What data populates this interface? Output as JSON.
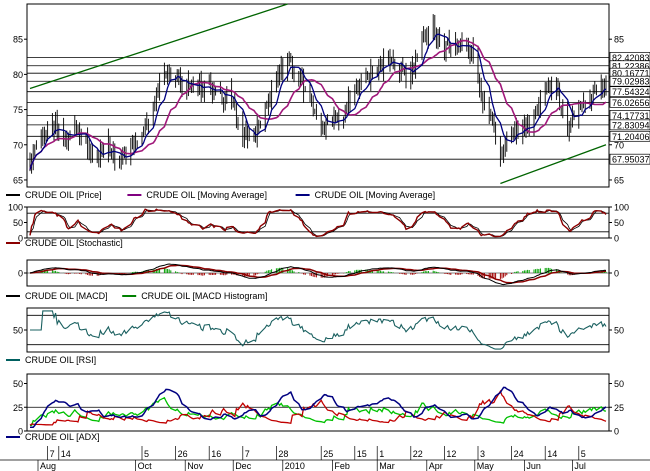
{
  "chart_data": [
    {
      "type": "candlestick",
      "panel": "price",
      "ylim": [
        64,
        90
      ],
      "y_ticks": [
        65,
        70,
        75,
        80,
        85
      ],
      "date_start": "2009-07-27",
      "date_end": "2010-07-22",
      "price_close_weekly": [
        [
          "2009-07-27",
          67.5
        ],
        [
          "2009-08-03",
          71.0
        ],
        [
          "2009-08-10",
          73.0
        ],
        [
          "2009-08-17",
          71.0
        ],
        [
          "2009-08-24",
          72.5
        ],
        [
          "2009-08-31",
          70.0
        ],
        [
          "2009-09-07",
          68.0
        ],
        [
          "2009-09-14",
          70.5
        ],
        [
          "2009-09-21",
          67.0
        ],
        [
          "2009-09-28",
          69.5
        ],
        [
          "2009-10-05",
          71.5
        ],
        [
          "2009-10-12",
          76.0
        ],
        [
          "2009-10-19",
          80.5
        ],
        [
          "2009-10-26",
          79.0
        ],
        [
          "2009-11-02",
          78.5
        ],
        [
          "2009-11-09",
          77.5
        ],
        [
          "2009-11-16",
          78.5
        ],
        [
          "2009-11-23",
          77.0
        ],
        [
          "2009-11-30",
          77.5
        ],
        [
          "2009-12-07",
          71.5
        ],
        [
          "2009-12-14",
          71.0
        ],
        [
          "2009-12-21",
          75.0
        ],
        [
          "2009-12-28",
          79.5
        ],
        [
          "2010-01-04",
          82.0
        ],
        [
          "2010-01-11",
          79.5
        ],
        [
          "2010-01-18",
          76.5
        ],
        [
          "2010-01-25",
          73.5
        ],
        [
          "2010-02-01",
          73.0
        ],
        [
          "2010-02-08",
          74.5
        ],
        [
          "2010-02-15",
          78.5
        ],
        [
          "2010-02-22",
          79.5
        ],
        [
          "2010-03-01",
          80.5
        ],
        [
          "2010-03-08",
          82.0
        ],
        [
          "2010-03-15",
          80.5
        ],
        [
          "2010-03-22",
          80.0
        ],
        [
          "2010-03-29",
          84.5
        ],
        [
          "2010-04-05",
          86.0
        ],
        [
          "2010-04-12",
          84.0
        ],
        [
          "2010-04-19",
          84.0
        ],
        [
          "2010-04-26",
          85.5
        ],
        [
          "2010-05-03",
          79.0
        ],
        [
          "2010-05-10",
          73.5
        ],
        [
          "2010-05-17",
          69.0
        ],
        [
          "2010-05-24",
          72.5
        ],
        [
          "2010-05-31",
          72.5
        ],
        [
          "2010-06-07",
          74.0
        ],
        [
          "2010-06-14",
          77.5
        ],
        [
          "2010-06-21",
          78.0
        ],
        [
          "2010-06-28",
          72.5
        ],
        [
          "2010-07-05",
          75.5
        ],
        [
          "2010-07-12",
          76.5
        ],
        [
          "2010-07-19",
          78.5
        ]
      ],
      "horizontal_levels": [
        82.42083,
        81.22386,
        80.16771,
        79.02983,
        77.54324,
        76.02656,
        74.17731,
        72.83094,
        71.20406,
        67.95037
      ],
      "trend_lines": [
        {
          "from": [
            "2009-07-27",
            78.0
          ],
          "to": [
            "2010-01-04",
            90.0
          ]
        },
        {
          "from": [
            "2010-05-17",
            64.5
          ],
          "to": [
            "2010-07-22",
            70.0
          ]
        }
      ],
      "legend": [
        {
          "label": "CRUDE OIL [Price]",
          "color": "#000000"
        },
        {
          "label": "CRUDE OIL [Moving Average]",
          "color": "#800080"
        },
        {
          "label": "CRUDE OIL [Moving Average]",
          "color": "#000080"
        }
      ],
      "colors": {
        "price": "#000000",
        "ma1": "#000080",
        "ma2": "#a0187a",
        "level": "#000000",
        "trend": "#006400"
      }
    },
    {
      "type": "line",
      "panel": "stochastic",
      "ylim": [
        0,
        100
      ],
      "y_ticks": [
        0,
        50,
        100
      ],
      "levels": [
        20,
        80
      ],
      "legend": [
        {
          "label": "CRUDE OIL [Stochastic]",
          "color": "#8b0000"
        }
      ],
      "colors": {
        "k": "#8b0000",
        "d": "#000000"
      }
    },
    {
      "type": "line",
      "panel": "macd",
      "ylim": [
        -4,
        4
      ],
      "y_ticks": [
        0
      ],
      "legend": [
        {
          "label": "CRUDE OIL [MACD]",
          "color": "#000000"
        },
        {
          "label": "CRUDE OIL [MACD Histogram]",
          "color": "#008000"
        }
      ],
      "colors": {
        "macd": "#000000",
        "signal": "#8b0000",
        "hist_pos": "#00a000",
        "hist_neg": "#a00000"
      }
    },
    {
      "type": "line",
      "panel": "rsi",
      "ylim": [
        20,
        80
      ],
      "y_ticks": [
        50
      ],
      "levels": [
        30,
        70
      ],
      "legend": [
        {
          "label": "CRUDE OIL [RSI]",
          "color": "#006060"
        }
      ],
      "colors": {
        "rsi": "#1a6060"
      }
    },
    {
      "type": "line",
      "panel": "adx",
      "ylim": [
        0,
        60
      ],
      "y_ticks": [
        0,
        25,
        50
      ],
      "levels": [
        25
      ],
      "legend": [
        {
          "label": "CRUDE OIL [ADX]",
          "color": "#000080"
        }
      ],
      "colors": {
        "adx": "#000080",
        "plus_di": "#00c000",
        "minus_di": "#c00000"
      }
    }
  ],
  "x_axis": {
    "day_ticks": [
      {
        "label": "7",
        "date": "2009-08-07"
      },
      {
        "label": "14",
        "date": "2009-08-14"
      },
      {
        "label": "5",
        "date": "2009-10-05"
      },
      {
        "label": "26",
        "date": "2009-10-26"
      },
      {
        "label": "16",
        "date": "2009-11-16"
      },
      {
        "label": "7",
        "date": "2009-12-07"
      },
      {
        "label": "28",
        "date": "2009-12-28"
      },
      {
        "label": "25",
        "date": "2010-01-25"
      },
      {
        "label": "15",
        "date": "2010-02-15"
      },
      {
        "label": "1",
        "date": "2010-03-01"
      },
      {
        "label": "22",
        "date": "2010-03-22"
      },
      {
        "label": "12",
        "date": "2010-04-12"
      },
      {
        "label": "3",
        "date": "2010-05-03"
      },
      {
        "label": "24",
        "date": "2010-05-24"
      },
      {
        "label": "14",
        "date": "2010-06-14"
      },
      {
        "label": "5",
        "date": "2010-07-05"
      }
    ],
    "month_ticks": [
      {
        "label": "Aug",
        "date": "2009-08-01"
      },
      {
        "label": "Oct",
        "date": "2009-10-01"
      },
      {
        "label": "Nov",
        "date": "2009-11-01"
      },
      {
        "label": "Dec",
        "date": "2009-12-01"
      },
      {
        "label": "2010",
        "date": "2010-01-01"
      },
      {
        "label": "Feb",
        "date": "2010-02-01"
      },
      {
        "label": "Mar",
        "date": "2010-03-01"
      },
      {
        "label": "Apr",
        "date": "2010-04-01"
      },
      {
        "label": "May",
        "date": "2010-05-01"
      },
      {
        "label": "Jun",
        "date": "2010-06-01"
      },
      {
        "label": "Jul",
        "date": "2010-07-01"
      }
    ]
  }
}
